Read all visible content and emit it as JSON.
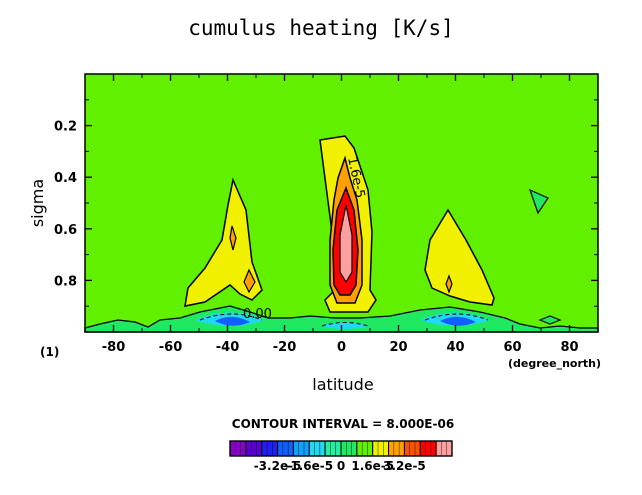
{
  "chart_data": {
    "type": "contour",
    "title": "cumulus heating [K/s]",
    "xlabel": "latitude",
    "ylabel": "sigma",
    "x_unit_label": "(degree_north)",
    "panel_label": "(1)",
    "xlim": [
      -90,
      90
    ],
    "ylim": [
      1.0,
      0.0
    ],
    "x_ticks": [
      -80,
      -60,
      -40,
      -20,
      0,
      20,
      40,
      60,
      80
    ],
    "y_ticks": [
      0.2,
      0.4,
      0.6,
      0.8
    ],
    "contour_interval_text": "CONTOUR INTERVAL = 8.000E-06",
    "contour_labels": [
      "1.6e-5",
      "0.00"
    ],
    "colorbar": {
      "tick_labels": [
        "-3.2e-5",
        "-1.6e-5",
        "0",
        "1.6e-5",
        "3.2e-5"
      ],
      "tick_values": [
        -3.2e-05,
        -1.6e-05,
        0,
        1.6e-05,
        3.2e-05
      ],
      "level_colors": [
        "#8800c8",
        "#5a00d6",
        "#2020f0",
        "#1060ff",
        "#10a0ff",
        "#20d8f0",
        "#20f0a0",
        "#20e860",
        "#60f000",
        "#f0f000",
        "#ffa000",
        "#ff5000",
        "#ff0000",
        "#ffa0a0"
      ]
    },
    "features": [
      {
        "name": "equatorial heating max",
        "lat": 2,
        "sigma": 0.62,
        "value": 4e-05
      },
      {
        "name": "southern midlatitude max",
        "lat": -36,
        "sigma": 0.75,
        "value": 1.6e-05
      },
      {
        "name": "northern midlatitude max",
        "lat": 38,
        "sigma": 0.75,
        "value": 1.6e-05
      },
      {
        "name": "near-surface cooling",
        "lat": -35,
        "sigma": 0.96,
        "value": -2.4e-05
      },
      {
        "name": "near-surface cooling",
        "lat": 40,
        "sigma": 0.96,
        "value": -2.4e-05
      }
    ]
  }
}
